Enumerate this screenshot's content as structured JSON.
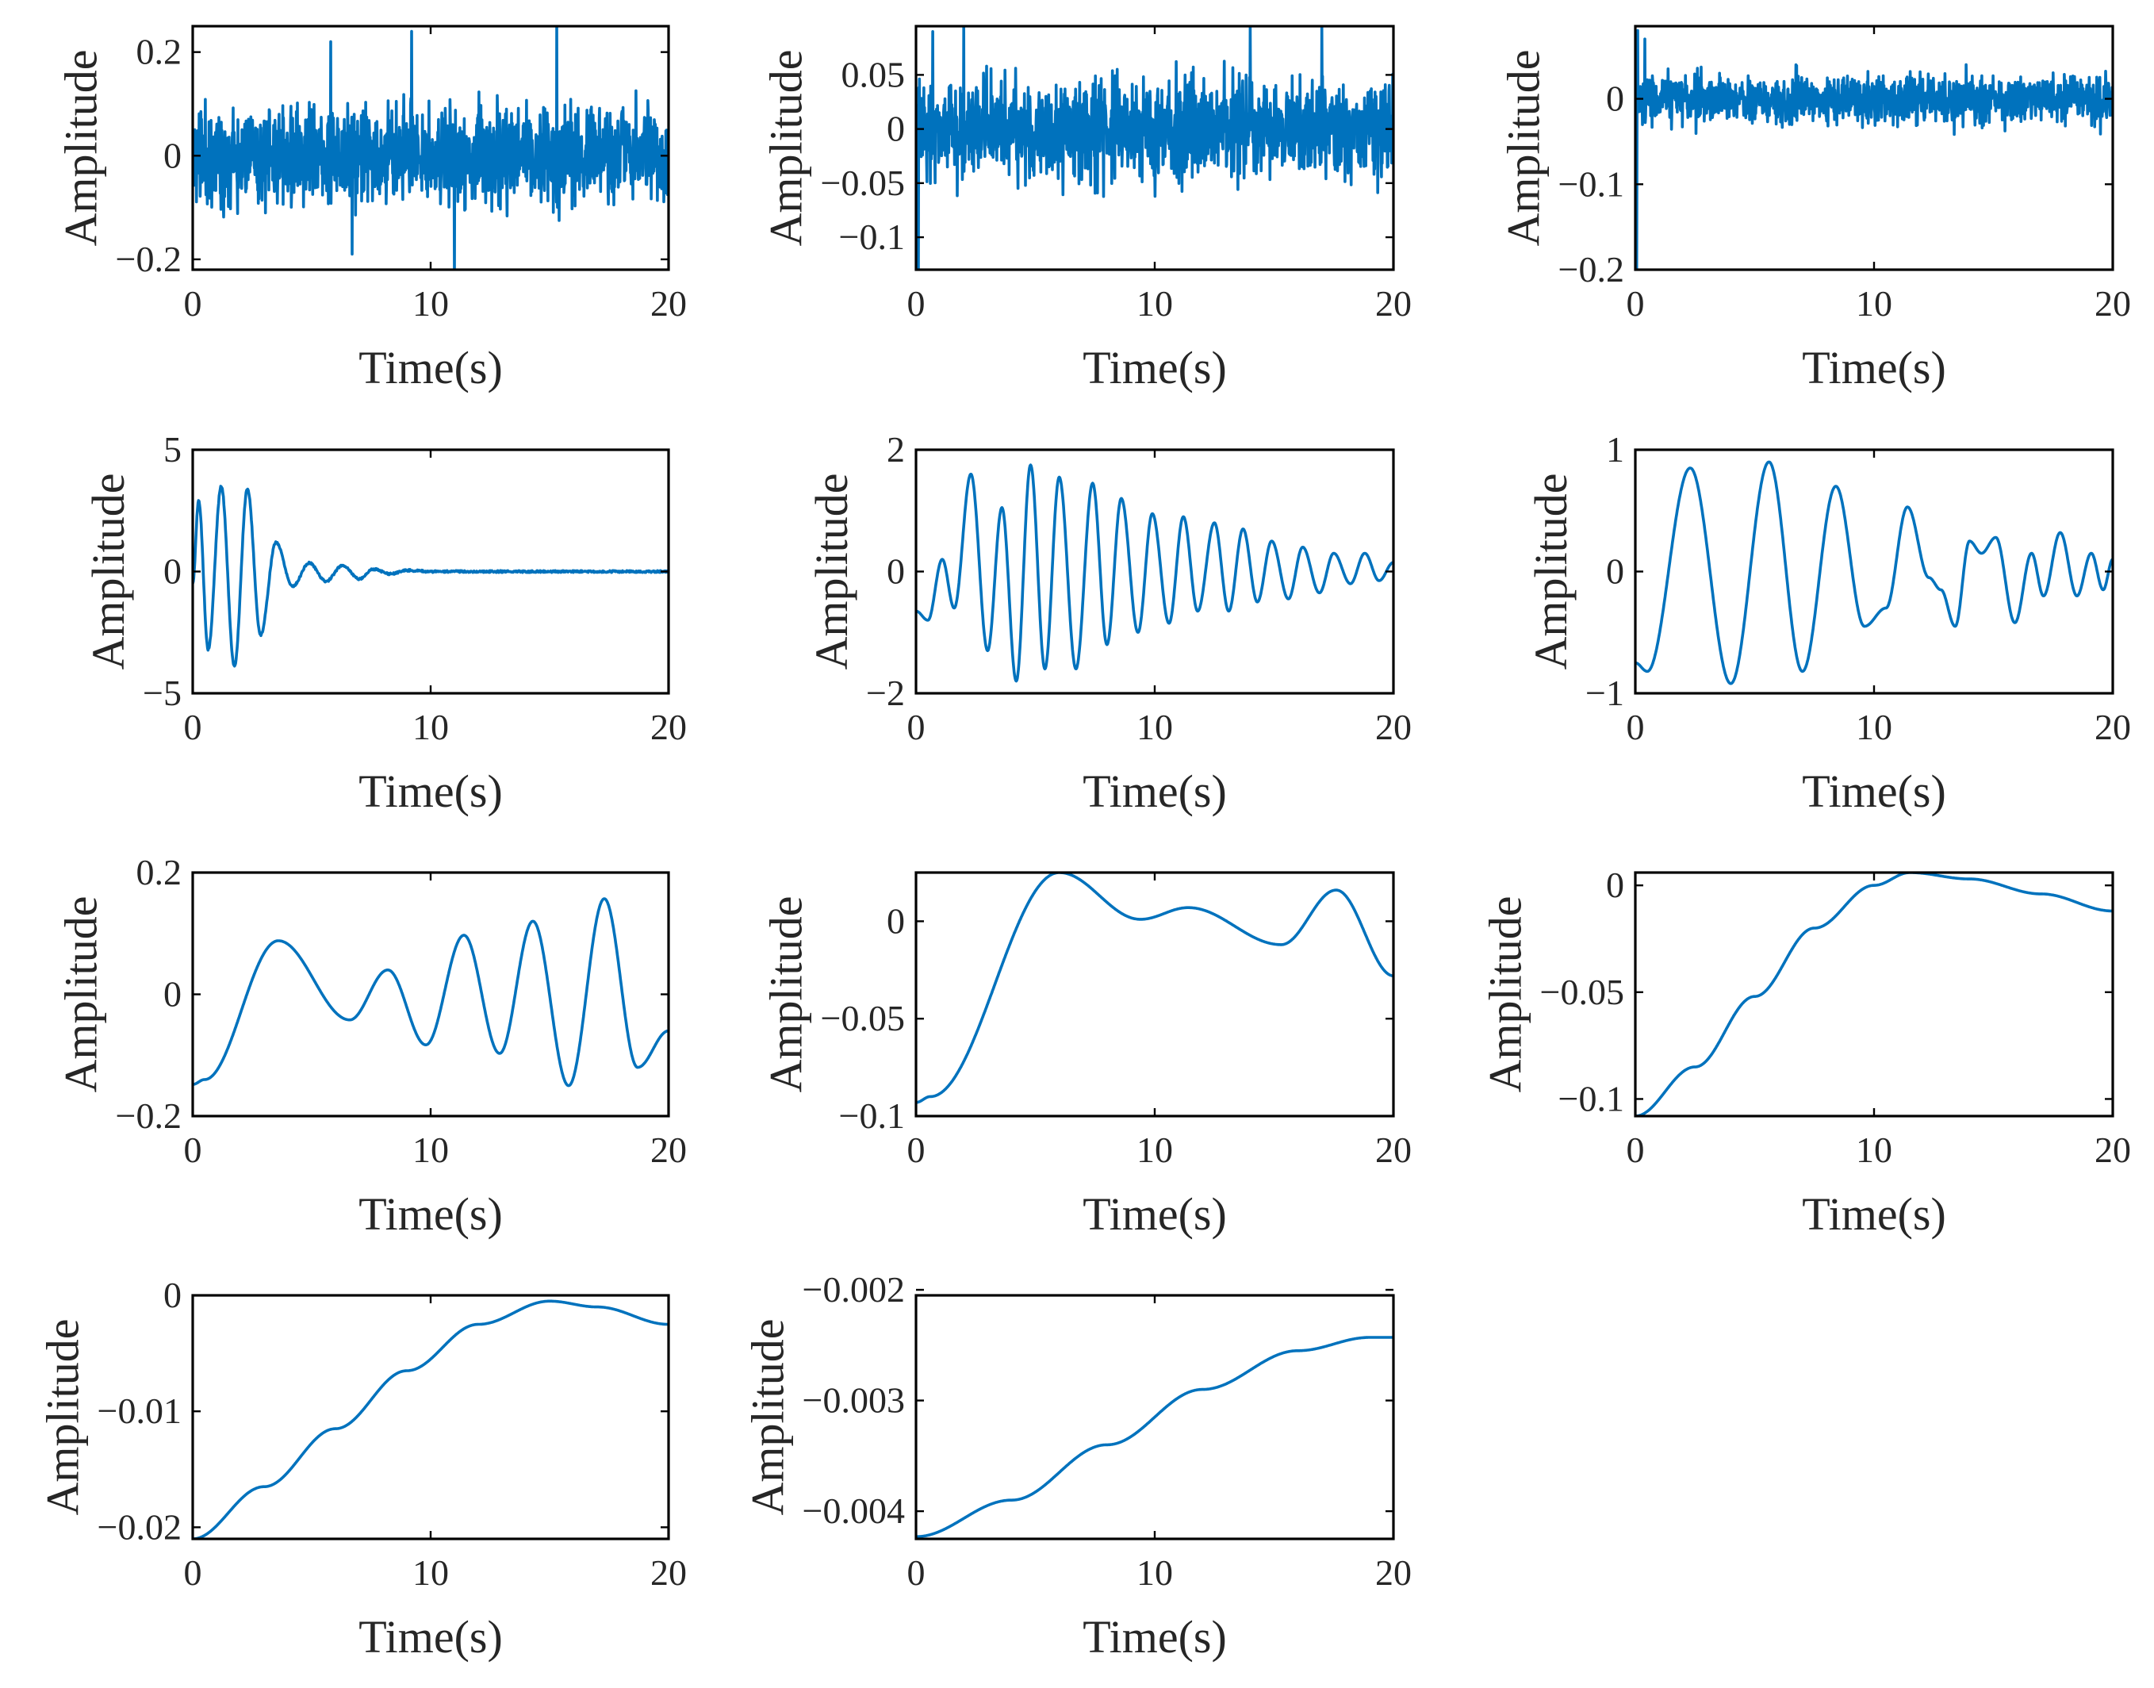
{
  "figure": {
    "line_color": "#0072bd"
  },
  "chart_data": [
    {
      "id": "imf1",
      "type": "line",
      "title": "",
      "xlabel": "Time(s)",
      "ylabel": "Amplitude",
      "xlim": [
        0,
        20
      ],
      "ylim": [
        -0.22,
        0.25
      ],
      "xticks": [
        0,
        10,
        20
      ],
      "xtick_labels": [
        "0",
        "10",
        "20"
      ],
      "yticks": [
        -0.2,
        0,
        0.2
      ],
      "ytick_labels": [
        "−0.2",
        "0",
        "0.2"
      ],
      "signal": {
        "kind": "noise",
        "amp": 0.055,
        "spike": 0.09,
        "seed": 11,
        "spikes": [
          [
            11.0,
            -0.24
          ],
          [
            15.3,
            0.25
          ],
          [
            9.2,
            0.24
          ],
          [
            5.8,
            0.22
          ],
          [
            6.7,
            -0.19
          ]
        ]
      }
    },
    {
      "id": "imf2",
      "type": "line",
      "title": "",
      "xlabel": "Time(s)",
      "ylabel": "Amplitude",
      "xlim": [
        0,
        20
      ],
      "ylim": [
        -0.13,
        0.095
      ],
      "xticks": [
        0,
        10,
        20
      ],
      "xtick_labels": [
        "0",
        "10",
        "20"
      ],
      "yticks": [
        -0.1,
        -0.05,
        0,
        0.05
      ],
      "ytick_labels": [
        "−0.1",
        "−0.05",
        "0",
        "0.05"
      ],
      "signal": {
        "kind": "noise",
        "amp": 0.025,
        "spike": 0.045,
        "seed": 23,
        "spikes": [
          [
            0.1,
            -0.13
          ],
          [
            2.0,
            0.095
          ],
          [
            14.0,
            0.095
          ],
          [
            17.0,
            0.095
          ],
          [
            0.7,
            0.09
          ]
        ]
      }
    },
    {
      "id": "imf3",
      "type": "line",
      "title": "",
      "xlabel": "Time(s)",
      "ylabel": "Amplitude",
      "xlim": [
        0,
        20
      ],
      "ylim": [
        -0.2,
        0.085
      ],
      "xticks": [
        0,
        10,
        20
      ],
      "xtick_labels": [
        "0",
        "10",
        "20"
      ],
      "yticks": [
        -0.2,
        -0.1,
        0
      ],
      "ytick_labels": [
        "−0.2",
        "−0.1",
        "0"
      ],
      "signal": {
        "kind": "noise",
        "amp": 0.016,
        "spike": 0.03,
        "seed": 37,
        "spikes": [
          [
            0.05,
            -0.2
          ],
          [
            0.1,
            0.08
          ],
          [
            0.4,
            0.07
          ]
        ]
      }
    },
    {
      "id": "imf4",
      "type": "line",
      "title": "",
      "xlabel": "Time(s)",
      "ylabel": "Amplitude",
      "xlim": [
        0,
        20
      ],
      "ylim": [
        -5,
        5
      ],
      "xticks": [
        0,
        10,
        20
      ],
      "xtick_labels": [
        "0",
        "10",
        "20"
      ],
      "yticks": [
        -5,
        0,
        5
      ],
      "ytick_labels": [
        "−5",
        "0",
        "5"
      ],
      "signal": {
        "kind": "wave",
        "pts": [
          [
            0,
            -0.5
          ],
          [
            0.25,
            2.9
          ],
          [
            0.65,
            -3.2
          ],
          [
            1.2,
            3.5
          ],
          [
            1.75,
            -3.9
          ],
          [
            2.3,
            3.4
          ],
          [
            2.85,
            -2.6
          ],
          [
            3.5,
            1.2
          ],
          [
            4.2,
            -0.6
          ],
          [
            4.9,
            0.35
          ],
          [
            5.6,
            -0.4
          ],
          [
            6.3,
            0.25
          ],
          [
            7.0,
            -0.3
          ],
          [
            7.6,
            0.1
          ],
          [
            8.3,
            -0.1
          ],
          [
            9.0,
            0.05
          ],
          [
            10,
            0
          ],
          [
            20,
            0
          ]
        ],
        "noise": 0.04,
        "seed": 5
      }
    },
    {
      "id": "imf5",
      "type": "line",
      "title": "",
      "xlabel": "Time(s)",
      "ylabel": "Amplitude",
      "xlim": [
        0,
        20
      ],
      "ylim": [
        -2,
        2
      ],
      "xticks": [
        0,
        10,
        20
      ],
      "xtick_labels": [
        "0",
        "10",
        "20"
      ],
      "yticks": [
        -2,
        0,
        2
      ],
      "ytick_labels": [
        "−2",
        "0",
        "2"
      ],
      "signal": {
        "kind": "wave",
        "pts": [
          [
            0,
            -0.65
          ],
          [
            0.5,
            -0.8
          ],
          [
            1.1,
            0.2
          ],
          [
            1.6,
            -0.6
          ],
          [
            2.3,
            1.6
          ],
          [
            3.0,
            -1.3
          ],
          [
            3.6,
            1.05
          ],
          [
            4.2,
            -1.8
          ],
          [
            4.8,
            1.75
          ],
          [
            5.4,
            -1.6
          ],
          [
            6.0,
            1.55
          ],
          [
            6.7,
            -1.6
          ],
          [
            7.4,
            1.45
          ],
          [
            8.0,
            -1.2
          ],
          [
            8.6,
            1.2
          ],
          [
            9.3,
            -1.0
          ],
          [
            9.9,
            0.95
          ],
          [
            10.6,
            -0.85
          ],
          [
            11.2,
            0.9
          ],
          [
            11.8,
            -0.65
          ],
          [
            12.5,
            0.8
          ],
          [
            13.1,
            -0.65
          ],
          [
            13.7,
            0.7
          ],
          [
            14.3,
            -0.5
          ],
          [
            14.9,
            0.5
          ],
          [
            15.6,
            -0.45
          ],
          [
            16.2,
            0.4
          ],
          [
            16.9,
            -0.35
          ],
          [
            17.5,
            0.3
          ],
          [
            18.2,
            -0.2
          ],
          [
            18.8,
            0.3
          ],
          [
            19.4,
            -0.15
          ],
          [
            20,
            0.15
          ]
        ],
        "noise": 0,
        "seed": 1
      }
    },
    {
      "id": "imf6",
      "type": "line",
      "title": "",
      "xlabel": "Time(s)",
      "ylabel": "Amplitude",
      "xlim": [
        0,
        20
      ],
      "ylim": [
        -1,
        1
      ],
      "xticks": [
        0,
        10,
        20
      ],
      "xtick_labels": [
        "0",
        "10",
        "20"
      ],
      "yticks": [
        -1,
        0,
        1
      ],
      "ytick_labels": [
        "−1",
        "0",
        "1"
      ],
      "signal": {
        "kind": "wave",
        "pts": [
          [
            0,
            -0.75
          ],
          [
            0.5,
            -0.82
          ],
          [
            2.3,
            0.85
          ],
          [
            4.0,
            -0.92
          ],
          [
            5.6,
            0.9
          ],
          [
            7.0,
            -0.82
          ],
          [
            8.4,
            0.7
          ],
          [
            9.6,
            -0.45
          ],
          [
            10.5,
            -0.3
          ],
          [
            11.4,
            0.53
          ],
          [
            12.3,
            -0.05
          ],
          [
            12.8,
            -0.15
          ],
          [
            13.4,
            -0.45
          ],
          [
            14.0,
            0.25
          ],
          [
            14.5,
            0.15
          ],
          [
            15.1,
            0.28
          ],
          [
            15.9,
            -0.42
          ],
          [
            16.6,
            0.15
          ],
          [
            17.1,
            -0.2
          ],
          [
            17.8,
            0.32
          ],
          [
            18.5,
            -0.2
          ],
          [
            19.1,
            0.15
          ],
          [
            19.6,
            -0.15
          ],
          [
            20,
            0.1
          ]
        ],
        "noise": 0,
        "seed": 1
      }
    },
    {
      "id": "imf7",
      "type": "line",
      "title": "",
      "xlabel": "Time(s)",
      "ylabel": "Amplitude",
      "xlim": [
        0,
        20
      ],
      "ylim": [
        -0.2,
        0.2
      ],
      "xticks": [
        0,
        10,
        20
      ],
      "xtick_labels": [
        "0",
        "10",
        "20"
      ],
      "yticks": [
        -0.2,
        0,
        0.2
      ],
      "ytick_labels": [
        "−0.2",
        "0",
        "0.2"
      ],
      "signal": {
        "kind": "wave",
        "pts": [
          [
            0,
            -0.148
          ],
          [
            0.5,
            -0.14
          ],
          [
            3.6,
            0.088
          ],
          [
            6.6,
            -0.042
          ],
          [
            8.2,
            0.04
          ],
          [
            9.8,
            -0.083
          ],
          [
            11.4,
            0.097
          ],
          [
            12.9,
            -0.097
          ],
          [
            14.3,
            0.12
          ],
          [
            15.8,
            -0.15
          ],
          [
            17.3,
            0.157
          ],
          [
            18.7,
            -0.12
          ],
          [
            20,
            -0.06
          ]
        ],
        "noise": 0,
        "seed": 1
      }
    },
    {
      "id": "imf8",
      "type": "line",
      "title": "",
      "xlabel": "Time(s)",
      "ylabel": "Amplitude",
      "xlim": [
        0,
        20
      ],
      "ylim": [
        -0.1,
        0.025
      ],
      "xticks": [
        0,
        10,
        20
      ],
      "xtick_labels": [
        "0",
        "10",
        "20"
      ],
      "yticks": [
        -0.1,
        -0.05,
        0
      ],
      "ytick_labels": [
        "−0.1",
        "−0.05",
        "0"
      ],
      "signal": {
        "kind": "wave",
        "pts": [
          [
            0,
            -0.093
          ],
          [
            0.6,
            -0.09
          ],
          [
            6.0,
            0.025
          ],
          [
            9.4,
            0.001
          ],
          [
            11.4,
            0.007
          ],
          [
            15.3,
            -0.012
          ],
          [
            17.6,
            0.016
          ],
          [
            20,
            -0.028
          ]
        ],
        "noise": 0,
        "seed": 1
      }
    },
    {
      "id": "imf9",
      "type": "line",
      "title": "",
      "xlabel": "Time(s)",
      "ylabel": "Amplitude",
      "xlim": [
        0,
        20
      ],
      "ylim": [
        -0.108,
        0.006
      ],
      "xticks": [
        0,
        10,
        20
      ],
      "xtick_labels": [
        "0",
        "10",
        "20"
      ],
      "yticks": [
        -0.1,
        -0.05,
        0
      ],
      "ytick_labels": [
        "−0.1",
        "−0.05",
        "0"
      ],
      "signal": {
        "kind": "wave",
        "pts": [
          [
            0,
            -0.108
          ],
          [
            2.5,
            -0.085
          ],
          [
            5.0,
            -0.052
          ],
          [
            7.5,
            -0.02
          ],
          [
            10.0,
            0.0
          ],
          [
            11.5,
            0.006
          ],
          [
            14.0,
            0.003
          ],
          [
            17.0,
            -0.004
          ],
          [
            20,
            -0.012
          ]
        ],
        "noise": 0,
        "seed": 1
      }
    },
    {
      "id": "imf10",
      "type": "line",
      "title": "",
      "xlabel": "Time(s)",
      "ylabel": "Amplitude",
      "xlim": [
        0,
        20
      ],
      "ylim": [
        -0.021,
        0
      ],
      "xticks": [
        0,
        10,
        20
      ],
      "xtick_labels": [
        "0",
        "10",
        "20"
      ],
      "yticks": [
        -0.02,
        -0.01,
        0
      ],
      "ytick_labels": [
        "−0.02",
        "−0.01",
        "0"
      ],
      "signal": {
        "kind": "wave",
        "pts": [
          [
            0,
            -0.021
          ],
          [
            3.0,
            -0.0165
          ],
          [
            6.0,
            -0.0115
          ],
          [
            9.0,
            -0.0065
          ],
          [
            12.0,
            -0.0025
          ],
          [
            15.0,
            -0.0005
          ],
          [
            17.0,
            -0.001
          ],
          [
            20,
            -0.0025
          ]
        ],
        "noise": 0,
        "seed": 1
      }
    },
    {
      "id": "imf11",
      "type": "line",
      "title": "",
      "xlabel": "Time(s)",
      "ylabel": "Amplitude",
      "xlim": [
        0,
        20
      ],
      "ylim": [
        -0.00425,
        -0.00205
      ],
      "xticks": [
        0,
        10,
        20
      ],
      "xtick_labels": [
        "0",
        "10",
        "20"
      ],
      "yticks": [
        -0.004,
        -0.003,
        -0.002
      ],
      "ytick_labels": [
        "−0.004",
        "−0.003",
        "−0.002"
      ],
      "signal": {
        "kind": "wave",
        "pts": [
          [
            0,
            -0.00423
          ],
          [
            4.0,
            -0.0039
          ],
          [
            8.0,
            -0.0034
          ],
          [
            12.0,
            -0.0029
          ],
          [
            16.0,
            -0.00255
          ],
          [
            19.0,
            -0.00243
          ],
          [
            20,
            -0.00243
          ]
        ],
        "noise": 0,
        "seed": 1
      }
    }
  ]
}
